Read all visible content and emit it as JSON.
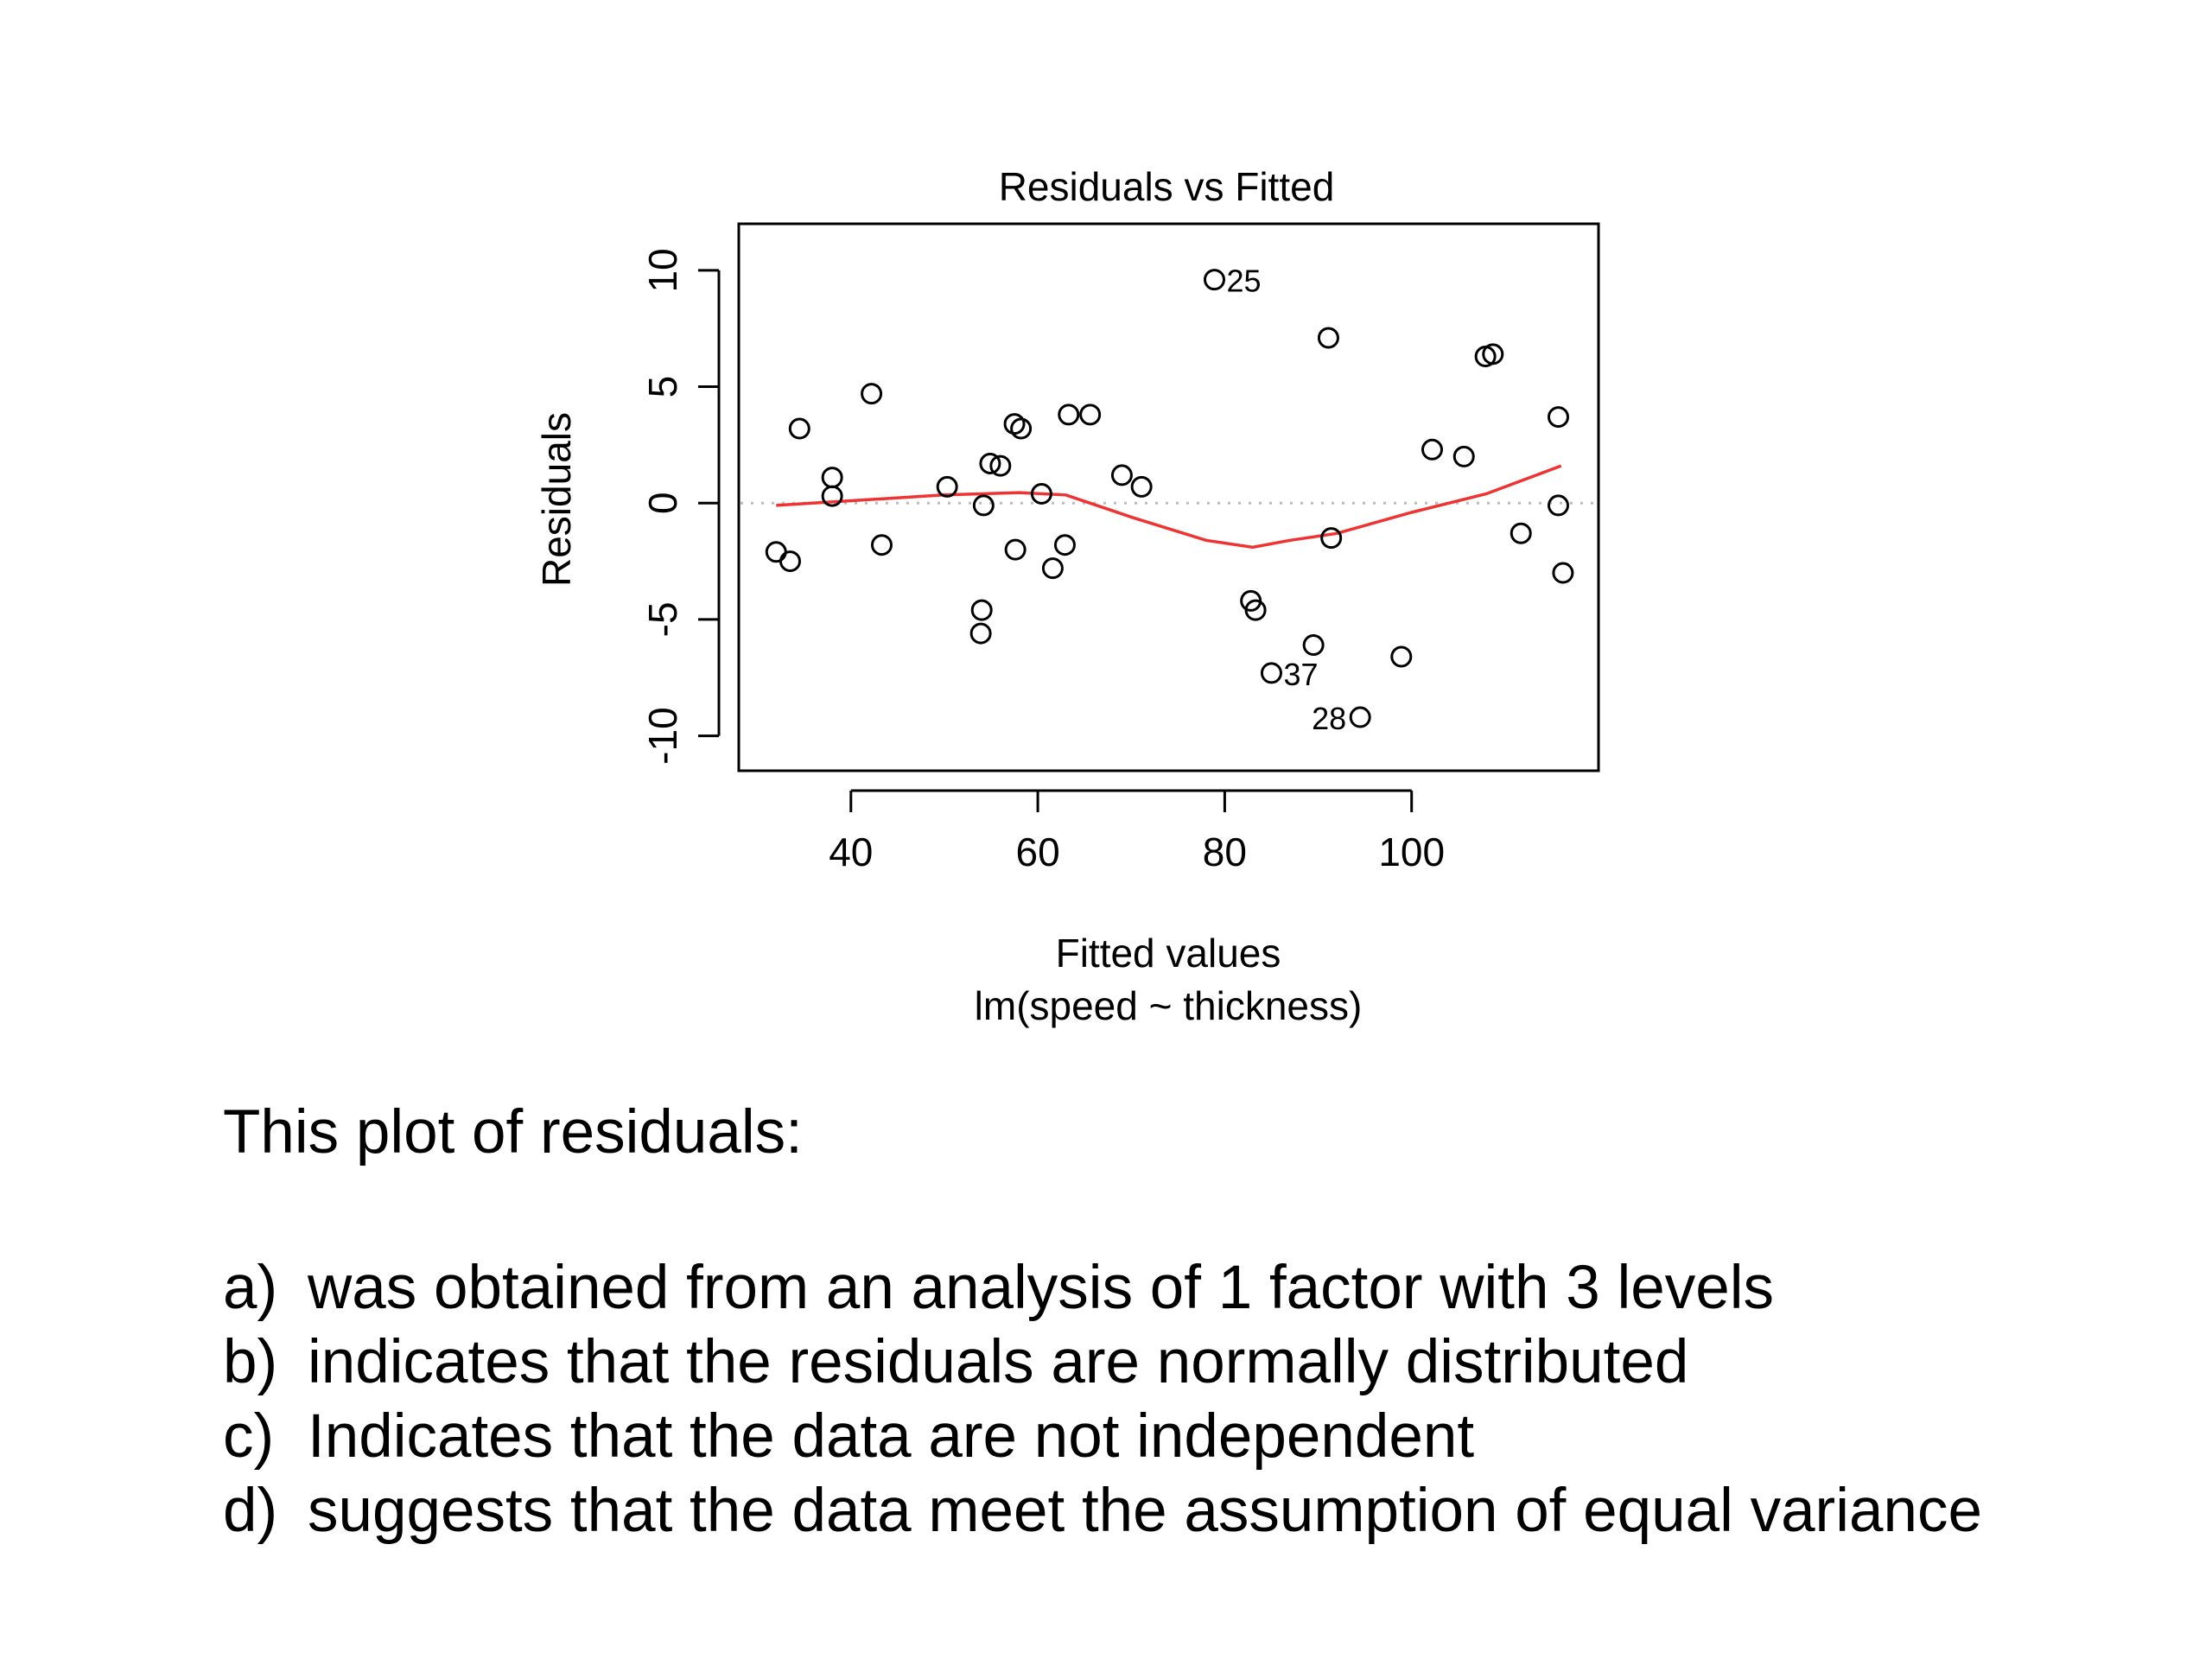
{
  "chart_data": {
    "type": "scatter",
    "title": "Residuals vs Fitted",
    "xlabel": "Fitted values",
    "subtitle": "lm(speed ~ thickness)",
    "ylabel": "Residuals",
    "xlim": [
      28,
      120
    ],
    "ylim": [
      -11.5,
      12
    ],
    "xticks": [
      "40",
      "60",
      "80",
      "100"
    ],
    "xtick_values": [
      40,
      60,
      80,
      100
    ],
    "yticks": [
      "-10",
      "-5",
      "0",
      "5",
      "10"
    ],
    "ytick_values": [
      -10,
      -5,
      0,
      5,
      10
    ],
    "points": [
      {
        "x": 32.0,
        "y": -2.1
      },
      {
        "x": 33.5,
        "y": -2.5
      },
      {
        "x": 34.5,
        "y": 3.2
      },
      {
        "x": 38.0,
        "y": 1.1
      },
      {
        "x": 38.0,
        "y": 0.3
      },
      {
        "x": 42.2,
        "y": 4.7
      },
      {
        "x": 43.3,
        "y": -1.8
      },
      {
        "x": 50.3,
        "y": 0.7
      },
      {
        "x": 54.0,
        "y": -4.6
      },
      {
        "x": 53.9,
        "y": -5.6
      },
      {
        "x": 54.2,
        "y": -0.1
      },
      {
        "x": 54.9,
        "y": 1.7
      },
      {
        "x": 56.0,
        "y": 1.6
      },
      {
        "x": 57.5,
        "y": 3.4
      },
      {
        "x": 58.2,
        "y": 3.2
      },
      {
        "x": 57.6,
        "y": -2.0
      },
      {
        "x": 60.4,
        "y": 0.4
      },
      {
        "x": 61.6,
        "y": -2.8
      },
      {
        "x": 62.9,
        "y": -1.8
      },
      {
        "x": 63.3,
        "y": 3.8
      },
      {
        "x": 65.6,
        "y": 3.8
      },
      {
        "x": 69.0,
        "y": 1.2
      },
      {
        "x": 71.1,
        "y": 0.7
      },
      {
        "x": 78.9,
        "y": 9.6,
        "label": "25"
      },
      {
        "x": 82.8,
        "y": -4.2
      },
      {
        "x": 83.3,
        "y": -4.6
      },
      {
        "x": 85.0,
        "y": -7.3,
        "label": "37"
      },
      {
        "x": 89.5,
        "y": -6.1
      },
      {
        "x": 91.1,
        "y": 7.1
      },
      {
        "x": 91.4,
        "y": -1.5
      },
      {
        "x": 94.5,
        "y": -9.2,
        "label": "28"
      },
      {
        "x": 98.9,
        "y": -6.6
      },
      {
        "x": 102.2,
        "y": 2.3
      },
      {
        "x": 105.6,
        "y": 2.0
      },
      {
        "x": 107.9,
        "y": 6.3
      },
      {
        "x": 108.7,
        "y": 6.4
      },
      {
        "x": 111.7,
        "y": -1.3
      },
      {
        "x": 115.7,
        "y": 3.7
      },
      {
        "x": 115.7,
        "y": -0.1
      },
      {
        "x": 116.2,
        "y": -3.0
      }
    ],
    "smooth_line": {
      "color": "#ee3333",
      "points": [
        [
          32,
          -0.1
        ],
        [
          40,
          0.1
        ],
        [
          50,
          0.35
        ],
        [
          58,
          0.45
        ],
        [
          63,
          0.35
        ],
        [
          70,
          -0.6
        ],
        [
          78,
          -1.6
        ],
        [
          83,
          -1.9
        ],
        [
          87,
          -1.6
        ],
        [
          92,
          -1.3
        ],
        [
          100,
          -0.4
        ],
        [
          108,
          0.4
        ],
        [
          116,
          1.6
        ]
      ]
    },
    "reference_line": {
      "y": 0,
      "color": "#bbbbbb",
      "style": "dotted"
    },
    "point_style": "open-circle",
    "grid": false
  },
  "question": {
    "prompt": "This plot of residuals:",
    "options": [
      {
        "letter": "a)",
        "text": "was obtained from an analysis of 1 factor with 3 levels"
      },
      {
        "letter": "b)",
        "text": "indicates that the residuals are normally distributed"
      },
      {
        "letter": "c)",
        "text": "Indicates that the data are not independent"
      },
      {
        "letter": "d)",
        "text": "suggests that the data meet the assumption of equal variance"
      }
    ]
  }
}
